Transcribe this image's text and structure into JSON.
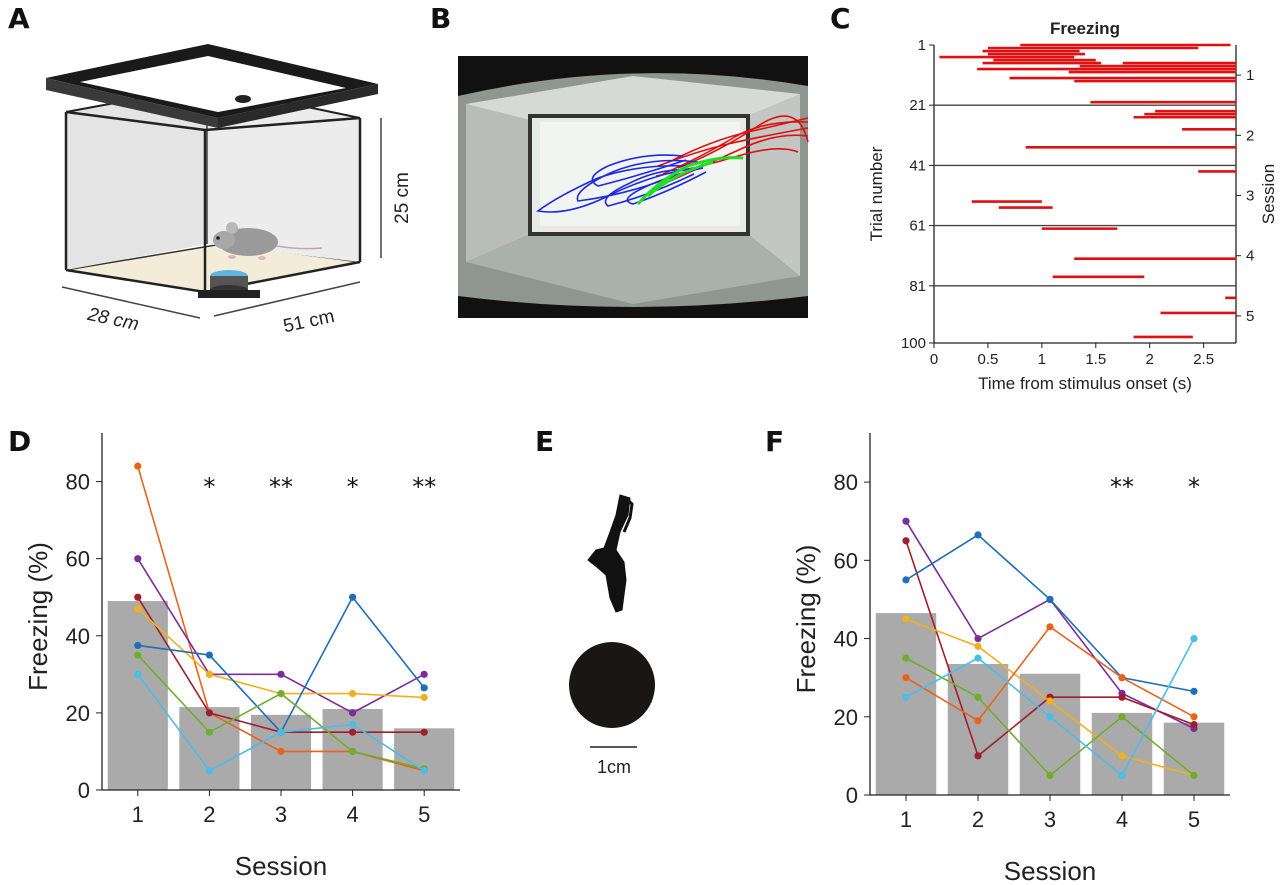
{
  "panels": {
    "a": "A",
    "b": "B",
    "c": "C",
    "d": "D",
    "e": "E",
    "f": "F"
  },
  "panel_a": {
    "dim_height": "25 cm",
    "dim_depth": "28 cm",
    "dim_width": "51 cm"
  },
  "panel_e": {
    "scale_label": "1cm"
  },
  "colors": {
    "bar": "#aaaaaa",
    "raster": "#e01010",
    "mice": [
      "#e8631c",
      "#7b2d9c",
      "#a01f2f",
      "#1f6fb8",
      "#f0b020",
      "#6fae2a",
      "#4cbce8"
    ]
  },
  "chart_data": [
    {
      "panel": "C",
      "type": "raster",
      "title": "Freezing",
      "xlabel": "Time from stimulus onset (s)",
      "ylabel": "Trial number",
      "y2label": "Session",
      "xlim": [
        0,
        2.8
      ],
      "ylim": [
        1,
        100
      ],
      "xticks": [
        "0",
        "0.5",
        "1",
        "1.5",
        "2",
        "2.5"
      ],
      "xtick_values": [
        0,
        0.5,
        1,
        1.5,
        2,
        2.5
      ],
      "yticks": [
        "1",
        "21",
        "41",
        "61",
        "81",
        "100"
      ],
      "ytick_values": [
        1,
        21,
        41,
        61,
        81,
        100
      ],
      "session_boundaries": [
        21,
        41,
        61,
        81
      ],
      "sessions": [
        "1",
        "2",
        "3",
        "4",
        "5"
      ],
      "session_centers": [
        11,
        31,
        51,
        71,
        91
      ],
      "segments": [
        {
          "trial": 1,
          "start": 0.8,
          "end": 2.75
        },
        {
          "trial": 2,
          "start": 0.5,
          "end": 2.45
        },
        {
          "trial": 3,
          "start": 0.45,
          "end": 1.35
        },
        {
          "trial": 4,
          "start": 0.5,
          "end": 1.4
        },
        {
          "trial": 5,
          "start": 0.05,
          "end": 1.3
        },
        {
          "trial": 6,
          "start": 0.55,
          "end": 1.5
        },
        {
          "trial": 7,
          "start": 0.45,
          "end": 1.55
        },
        {
          "trial": 7,
          "start": 1.75,
          "end": 2.8
        },
        {
          "trial": 8,
          "start": 1.35,
          "end": 2.8
        },
        {
          "trial": 9,
          "start": 0.4,
          "end": 2.8
        },
        {
          "trial": 10,
          "start": 1.25,
          "end": 2.8
        },
        {
          "trial": 12,
          "start": 0.7,
          "end": 2.8
        },
        {
          "trial": 13,
          "start": 1.3,
          "end": 2.8
        },
        {
          "trial": 20,
          "start": 1.45,
          "end": 2.8
        },
        {
          "trial": 23,
          "start": 2.05,
          "end": 2.8
        },
        {
          "trial": 24,
          "start": 1.95,
          "end": 2.8
        },
        {
          "trial": 25,
          "start": 1.85,
          "end": 2.8
        },
        {
          "trial": 29,
          "start": 2.3,
          "end": 2.8
        },
        {
          "trial": 35,
          "start": 0.85,
          "end": 2.8
        },
        {
          "trial": 43,
          "start": 2.45,
          "end": 2.8
        },
        {
          "trial": 53,
          "start": 0.35,
          "end": 1.0
        },
        {
          "trial": 55,
          "start": 0.6,
          "end": 1.1
        },
        {
          "trial": 62,
          "start": 1.0,
          "end": 1.7
        },
        {
          "trial": 72,
          "start": 1.3,
          "end": 2.8
        },
        {
          "trial": 78,
          "start": 1.1,
          "end": 1.95
        },
        {
          "trial": 85,
          "start": 2.7,
          "end": 2.8
        },
        {
          "trial": 90,
          "start": 2.1,
          "end": 2.8
        },
        {
          "trial": 98,
          "start": 1.85,
          "end": 2.4
        }
      ]
    },
    {
      "panel": "D",
      "type": "bar",
      "xlabel": "Session",
      "ylabel": "Freezing (%)",
      "ylim": [
        0,
        90
      ],
      "yticks": [
        "0",
        "20",
        "40",
        "60",
        "80"
      ],
      "ytick_values": [
        0,
        20,
        40,
        60,
        80
      ],
      "categories": [
        "1",
        "2",
        "3",
        "4",
        "5"
      ],
      "values": [
        49,
        21.5,
        19.5,
        21,
        16
      ],
      "significance": [
        "",
        "*",
        "**",
        "*",
        "**"
      ],
      "series": [
        {
          "color": "#e8631c",
          "values": [
            84,
            20,
            10,
            10,
            5
          ]
        },
        {
          "color": "#7b2d9c",
          "values": [
            60,
            30,
            30,
            20,
            30
          ]
        },
        {
          "color": "#a01f2f",
          "values": [
            50,
            20,
            15,
            15,
            15
          ]
        },
        {
          "color": "#f0b020",
          "values": [
            47,
            30,
            25,
            25,
            24
          ]
        },
        {
          "color": "#1f6fb8",
          "values": [
            37.5,
            35,
            15,
            50,
            26.5
          ]
        },
        {
          "color": "#6fae2a",
          "values": [
            35,
            15,
            25,
            10,
            5.5
          ]
        },
        {
          "color": "#4cbce8",
          "values": [
            30,
            5,
            15,
            17,
            5
          ]
        }
      ]
    },
    {
      "panel": "F",
      "type": "bar",
      "xlabel": "Session",
      "ylabel": "Freezing (%)",
      "ylim": [
        0,
        90
      ],
      "yticks": [
        "0",
        "20",
        "40",
        "60",
        "80"
      ],
      "ytick_values": [
        0,
        20,
        40,
        60,
        80
      ],
      "categories": [
        "1",
        "2",
        "3",
        "4",
        "5"
      ],
      "values": [
        46.5,
        33.5,
        31,
        21,
        18.5
      ],
      "significance": [
        "",
        "",
        "",
        "**",
        "*"
      ],
      "series": [
        {
          "color": "#7b2d9c",
          "values": [
            70,
            40,
            50,
            26,
            17
          ]
        },
        {
          "color": "#a01f2f",
          "values": [
            65,
            10,
            25,
            25,
            18
          ]
        },
        {
          "color": "#1f6fb8",
          "values": [
            55,
            66.5,
            50,
            30,
            26.5
          ]
        },
        {
          "color": "#f0b020",
          "values": [
            45,
            38,
            24,
            10,
            5
          ]
        },
        {
          "color": "#6fae2a",
          "values": [
            35,
            25,
            5,
            20,
            5
          ]
        },
        {
          "color": "#e8631c",
          "values": [
            30,
            19,
            43,
            30,
            20
          ]
        },
        {
          "color": "#4cbce8",
          "values": [
            25,
            35,
            20,
            5,
            40
          ]
        }
      ]
    }
  ]
}
